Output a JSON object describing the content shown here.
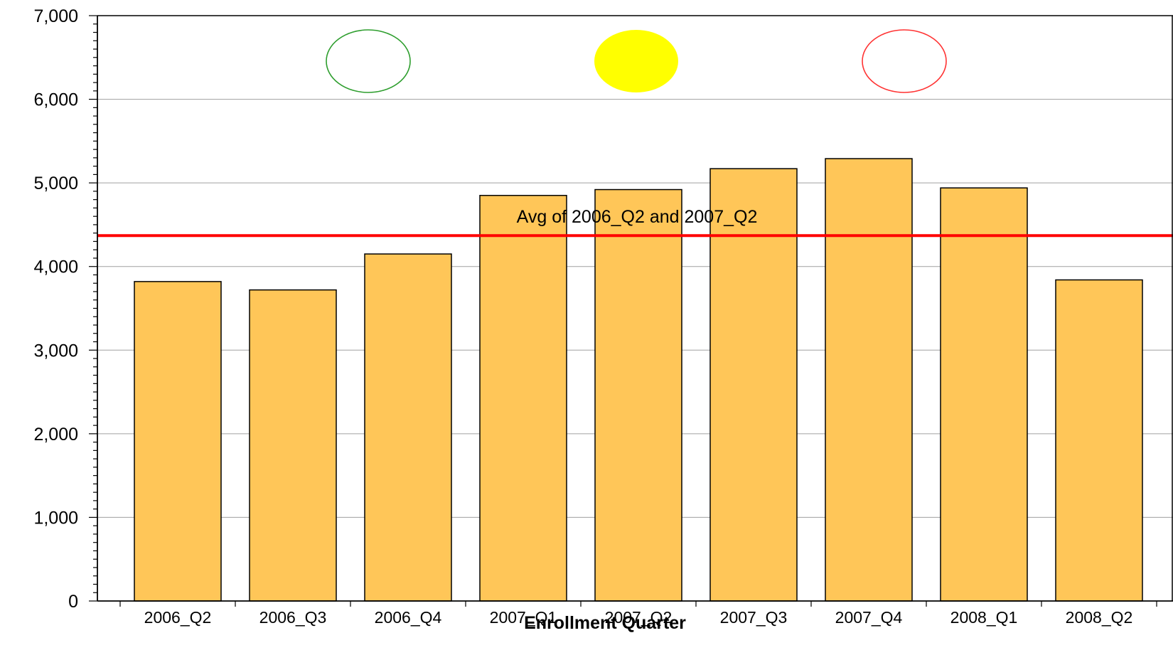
{
  "chart_data": {
    "type": "bar",
    "title": "",
    "xlabel": "Enrollment Quarter",
    "ylabel": "",
    "categories": [
      "2006_Q2",
      "2006_Q3",
      "2006_Q4",
      "2007_Q1",
      "2007_Q2",
      "2007_Q3",
      "2007_Q4",
      "2008_Q1",
      "2008_Q2"
    ],
    "series": [
      {
        "values": [
          3820,
          3720,
          4150,
          4850,
          4920,
          5170,
          5290,
          4940,
          3840
        ]
      }
    ],
    "ylim": [
      0,
      7000
    ],
    "yticks": [
      0,
      1000,
      2000,
      3000,
      4000,
      5000,
      6000,
      7000
    ],
    "ytick_labels": [
      "0",
      "1,000",
      "2,000",
      "3,000",
      "4,000",
      "5,000",
      "6,000",
      "7,000"
    ],
    "grid": "horizontal",
    "bar_color": "#ffc658",
    "bar_edge_color": "#000000",
    "reference_line": {
      "value": 4370,
      "label": "Avg of 2006_Q2 and 2007_Q2",
      "color": "#ff0000"
    },
    "indicators": [
      {
        "name": "green-indicator-circle",
        "style": "outline",
        "color": "#2e9e2e"
      },
      {
        "name": "yellow-indicator-circle",
        "style": "filled",
        "color": "#ffff00"
      },
      {
        "name": "red-indicator-circle",
        "style": "outline",
        "color": "#ff3333"
      }
    ]
  }
}
